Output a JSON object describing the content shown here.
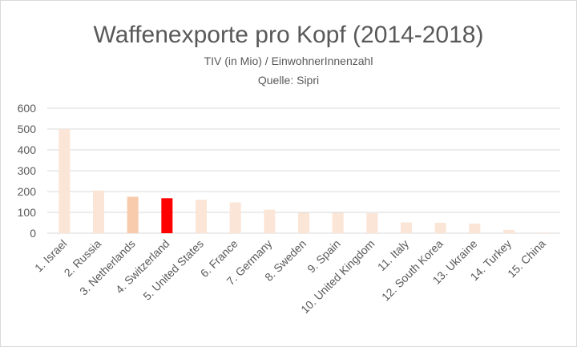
{
  "chart_data": {
    "type": "bar",
    "title": "Waffenexporte pro Kopf (2014-2018)",
    "subtitle": [
      "TIV (in Mio) / EinwohnerInnenzahl",
      "Quelle: Sipri"
    ],
    "categories": [
      "1. Israel",
      "2. Russia",
      "3. Netherlands",
      "4. Switzerland",
      "5. United States",
      "6. France",
      "7. Germany",
      "8. Sweden",
      "9. Spain",
      "10. United Kingdom",
      "11. Italy",
      "12. South Korea",
      "13. Ukraine",
      "14. Turkey",
      "15. China"
    ],
    "values": [
      500,
      205,
      175,
      168,
      160,
      148,
      113,
      98,
      98,
      96,
      52,
      50,
      46,
      16,
      3
    ],
    "ylim": [
      0,
      600
    ],
    "yticks": [
      0,
      100,
      200,
      300,
      400,
      500,
      600
    ],
    "grid": true,
    "colors": {
      "default": "#fbe5d6",
      "netherlands": "#f8cbad",
      "switzerland": "#ff0000",
      "grid": "#d9d9d9",
      "text": "#595959"
    }
  }
}
